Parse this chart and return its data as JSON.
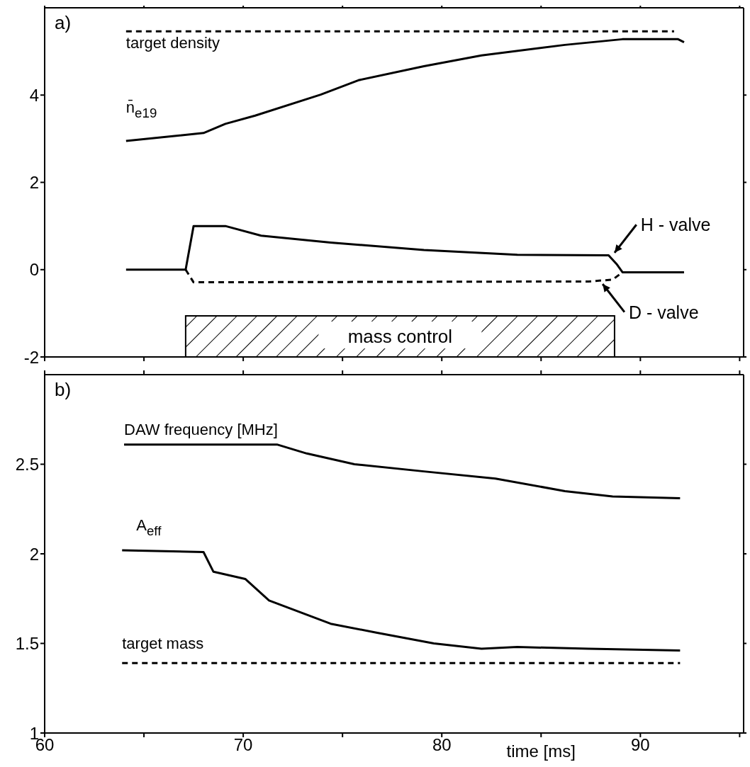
{
  "chart_data": [
    {
      "type": "line",
      "annotations": [
        "a)",
        {
          "text": "H - valve",
          "x": 88.6,
          "y": 0.33
        },
        {
          "text": "D - valve",
          "x": 88.0,
          "y": -0.27
        }
      ],
      "xlim": [
        60,
        95.2
      ],
      "xticks": [
        60,
        {
          "value": 65,
          "label": null
        },
        70,
        {
          "value": 75,
          "label": null
        },
        80,
        {
          "value": 85,
          "label": null
        },
        90,
        {
          "value": 95,
          "label": null
        }
      ],
      "ylim": [
        -2,
        6
      ],
      "yticks": [
        -2,
        0,
        2,
        4
      ],
      "tick_labels": "y",
      "bands": [
        {
          "axis": "x",
          "from": 67.1,
          "to": 88.7,
          "label": "mass control",
          "color": "#000000"
        }
      ],
      "series": [
        {
          "name": "target density",
          "color": "#000000",
          "line_style": "dashed",
          "x": [
            64.1,
            91.7
          ],
          "values": [
            5.46,
            5.46
          ]
        },
        {
          "name": "n̄$_{e19}$",
          "color": "#000000",
          "line_style": "solid",
          "x": [
            64.1,
            68.0,
            69.1,
            70.6,
            73.9,
            75.8,
            79.1,
            82.0,
            86.2,
            89.1,
            91.9,
            92.2
          ],
          "values": [
            2.95,
            3.13,
            3.34,
            3.53,
            4.01,
            4.34,
            4.66,
            4.91,
            5.15,
            5.28,
            5.28,
            5.21
          ]
        },
        {
          "color": "#000000",
          "line_style": "solid",
          "x": [
            64.1,
            67.1,
            67.5,
            69.1,
            70.9,
            74.4,
            79.1,
            83.8,
            88.4,
            88.8,
            89.1,
            92.2
          ],
          "values": [
            0,
            0,
            1.0,
            1.0,
            0.78,
            0.62,
            0.45,
            0.34,
            0.33,
            0.13,
            -0.06,
            -0.06
          ]
        },
        {
          "color": "#000000",
          "line_style": "dashed",
          "x": [
            67.1,
            67.5,
            87.4,
            88.6,
            89.1
          ],
          "values": [
            0,
            -0.29,
            -0.27,
            -0.23,
            -0.06
          ]
        }
      ]
    },
    {
      "type": "line",
      "annotations": [
        "b)"
      ],
      "xlabel": "time [ms]",
      "xlim": [
        60,
        95.2
      ],
      "xticks": [
        60,
        {
          "value": 65,
          "label": null
        },
        70,
        {
          "value": 75,
          "label": null
        },
        80,
        {
          "value": 85,
          "label": null
        },
        90,
        {
          "value": 95,
          "label": null
        }
      ],
      "ylim": [
        1,
        3
      ],
      "yticks": [
        1,
        1.5,
        2,
        2.5
      ],
      "series": [
        {
          "name": "DAW frequency [MHz]",
          "color": "#000000",
          "line_style": "solid",
          "x": [
            64.0,
            71.7,
            73.2,
            75.6,
            79.1,
            82.7,
            86.2,
            88.6,
            92.0
          ],
          "values": [
            2.61,
            2.61,
            2.56,
            2.5,
            2.46,
            2.42,
            2.35,
            2.32,
            2.31
          ]
        },
        {
          "name": "A$_{eff}$",
          "color": "#000000",
          "line_style": "solid",
          "x": [
            63.9,
            68.0,
            68.5,
            70.1,
            71.3,
            74.4,
            76.7,
            79.6,
            82.0,
            83.8,
            87.4,
            92.0
          ],
          "values": [
            2.02,
            2.01,
            1.9,
            1.86,
            1.74,
            1.61,
            1.56,
            1.5,
            1.47,
            1.48,
            1.47,
            1.46
          ]
        },
        {
          "name": "target mass",
          "color": "#000000",
          "line_style": "dashed",
          "x": [
            63.9,
            92.0
          ],
          "values": [
            1.39,
            1.39
          ]
        }
      ]
    }
  ]
}
